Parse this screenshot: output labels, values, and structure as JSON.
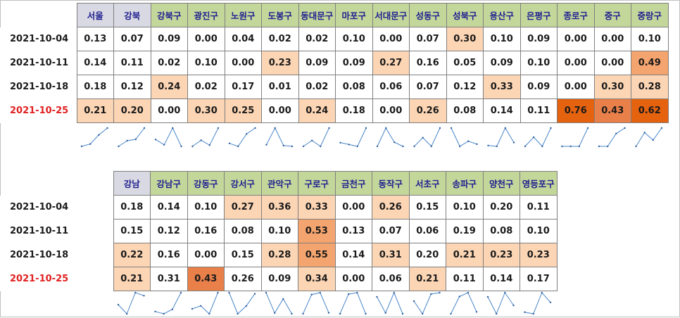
{
  "dates": [
    "2021-10-04",
    "2021-10-11",
    "2021-10-18",
    "2021-10-25"
  ],
  "latest_date_color": "#e02020",
  "heat_colors": {
    "none": "#ffffff",
    "low": "#fcd5b4",
    "mid": "#f4a46e",
    "high": "#e9804a",
    "max": "#e5620f"
  },
  "header_colors": {
    "city": "#d9d9e3",
    "district": "#c4d79b",
    "text": "#1f1f8f"
  },
  "sparkline_color": "#4a86c8",
  "tables": [
    {
      "columns": [
        "서울",
        "강북",
        "강북구",
        "광진구",
        "노원구",
        "도봉구",
        "동대문구",
        "마포구",
        "서대문구",
        "성동구",
        "성북구",
        "용산구",
        "은평구",
        "종로구",
        "중구",
        "중랑구"
      ],
      "column_kinds": [
        "city",
        "city",
        "district",
        "district",
        "district",
        "district",
        "district",
        "district",
        "district",
        "district",
        "district",
        "district",
        "district",
        "district",
        "district",
        "district"
      ],
      "rows": [
        [
          "0.13",
          "0.07",
          "0.09",
          "0.00",
          "0.04",
          "0.02",
          "0.02",
          "0.10",
          "0.00",
          "0.07",
          "0.30",
          "0.10",
          "0.09",
          "0.00",
          "0.00",
          "0.10"
        ],
        [
          "0.14",
          "0.11",
          "0.02",
          "0.10",
          "0.00",
          "0.23",
          "0.09",
          "0.09",
          "0.27",
          "0.16",
          "0.05",
          "0.09",
          "0.10",
          "0.00",
          "0.00",
          "0.49"
        ],
        [
          "0.18",
          "0.12",
          "0.24",
          "0.02",
          "0.17",
          "0.01",
          "0.02",
          "0.08",
          "0.06",
          "0.07",
          "0.12",
          "0.33",
          "0.09",
          "0.00",
          "0.30",
          "0.28"
        ],
        [
          "0.21",
          "0.20",
          "0.00",
          "0.30",
          "0.25",
          "0.00",
          "0.24",
          "0.18",
          "0.00",
          "0.26",
          "0.08",
          "0.14",
          "0.11",
          "0.76",
          "0.43",
          "0.62"
        ]
      ],
      "heat": [
        [
          "none",
          "none",
          "none",
          "none",
          "none",
          "none",
          "none",
          "none",
          "none",
          "none",
          "low",
          "none",
          "none",
          "none",
          "none",
          "none"
        ],
        [
          "none",
          "none",
          "none",
          "none",
          "none",
          "low",
          "none",
          "none",
          "low",
          "none",
          "none",
          "none",
          "none",
          "none",
          "none",
          "mid"
        ],
        [
          "none",
          "none",
          "low",
          "none",
          "none",
          "none",
          "none",
          "none",
          "none",
          "none",
          "none",
          "low",
          "none",
          "none",
          "low",
          "low"
        ],
        [
          "low",
          "low",
          "none",
          "low",
          "low",
          "none",
          "low",
          "none",
          "none",
          "low",
          "none",
          "none",
          "none",
          "max",
          "high",
          "max"
        ]
      ]
    },
    {
      "columns": [
        "강남",
        "강남구",
        "강동구",
        "강서구",
        "관악구",
        "구로구",
        "금천구",
        "동작구",
        "서초구",
        "송파구",
        "양천구",
        "영등포구"
      ],
      "column_kinds": [
        "city",
        "district",
        "district",
        "district",
        "district",
        "district",
        "district",
        "district",
        "district",
        "district",
        "district",
        "district"
      ],
      "rows": [
        [
          "0.18",
          "0.14",
          "0.10",
          "0.27",
          "0.36",
          "0.33",
          "0.00",
          "0.26",
          "0.15",
          "0.10",
          "0.20",
          "0.11"
        ],
        [
          "0.15",
          "0.12",
          "0.16",
          "0.08",
          "0.10",
          "0.53",
          "0.13",
          "0.07",
          "0.06",
          "0.19",
          "0.08",
          "0.10"
        ],
        [
          "0.22",
          "0.16",
          "0.00",
          "0.15",
          "0.28",
          "0.55",
          "0.14",
          "0.31",
          "0.20",
          "0.21",
          "0.23",
          "0.23"
        ],
        [
          "0.21",
          "0.31",
          "0.43",
          "0.26",
          "0.09",
          "0.34",
          "0.00",
          "0.06",
          "0.21",
          "0.11",
          "0.14",
          "0.17"
        ]
      ],
      "heat": [
        [
          "none",
          "none",
          "none",
          "low",
          "low",
          "low",
          "none",
          "low",
          "none",
          "none",
          "none",
          "none"
        ],
        [
          "none",
          "none",
          "none",
          "none",
          "none",
          "mid",
          "none",
          "none",
          "none",
          "none",
          "none",
          "none"
        ],
        [
          "low",
          "none",
          "none",
          "none",
          "low",
          "mid",
          "none",
          "low",
          "none",
          "low",
          "low",
          "low"
        ],
        [
          "low",
          "none",
          "high",
          "none",
          "none",
          "low",
          "none",
          "none",
          "low",
          "none",
          "none",
          "none"
        ]
      ]
    }
  ]
}
